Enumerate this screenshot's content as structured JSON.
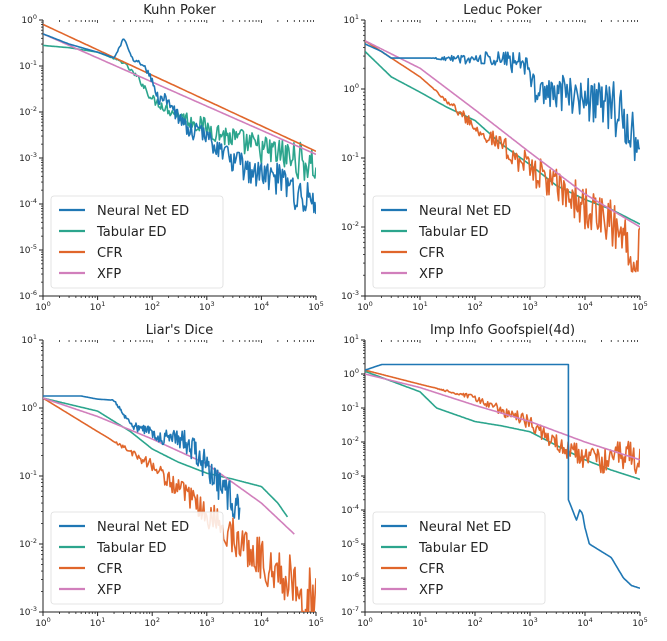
{
  "colors": {
    "neural": "#1f77b4",
    "tabular": "#2ca58d",
    "cfr": "#e0662b",
    "xfp": "#d17fbc"
  },
  "legend_items": [
    {
      "key": "neural",
      "label": "Neural Net ED"
    },
    {
      "key": "tabular",
      "label": "Tabular ED"
    },
    {
      "key": "cfr",
      "label": "CFR"
    },
    {
      "key": "xfp",
      "label": "XFP"
    }
  ],
  "chart_data": [
    {
      "type": "line",
      "title": "Kuhn Poker",
      "xscale": "log",
      "yscale": "log",
      "xlim": [
        1,
        100000
      ],
      "ylim": [
        1e-06,
        1
      ],
      "xlabel": "",
      "ylabel": "",
      "legend": "lower-left",
      "grid": false,
      "series": [
        {
          "key": "neural",
          "name": "Neural Net ED",
          "noisy": true,
          "x": [
            1,
            3,
            10,
            20,
            30,
            45,
            70,
            100,
            130,
            200,
            300,
            500,
            800,
            1500,
            3000,
            6000,
            10000,
            20000,
            50000,
            100000
          ],
          "y": [
            0.5,
            0.3,
            0.2,
            0.15,
            0.4,
            0.15,
            0.1,
            0.05,
            0.02,
            0.02,
            0.008,
            0.004,
            0.004,
            0.002,
            0.001,
            0.0006,
            0.0005,
            0.0004,
            0.0002,
            0.0001
          ]
        },
        {
          "key": "tabular",
          "name": "Tabular ED",
          "noisy": true,
          "x": [
            1,
            3,
            10,
            30,
            60,
            100,
            200,
            500,
            1000,
            3000,
            10000,
            30000,
            100000
          ],
          "y": [
            0.28,
            0.25,
            0.2,
            0.12,
            0.05,
            0.02,
            0.012,
            0.007,
            0.005,
            0.003,
            0.0018,
            0.0013,
            0.0008
          ]
        },
        {
          "key": "cfr",
          "name": "CFR",
          "x": [
            1,
            100000
          ],
          "y": [
            0.8,
            0.0014
          ]
        },
        {
          "key": "xfp",
          "name": "XFP",
          "x": [
            1,
            100000
          ],
          "y": [
            0.5,
            0.0012
          ]
        }
      ]
    },
    {
      "type": "line",
      "title": "Leduc Poker",
      "xscale": "log",
      "yscale": "log",
      "xlim": [
        1,
        100000
      ],
      "ylim": [
        0.001,
        10
      ],
      "xlabel": "",
      "ylabel": "",
      "legend": "lower-left",
      "grid": false,
      "series": [
        {
          "key": "neural",
          "name": "Neural Net ED",
          "noisy": true,
          "x": [
            1,
            2,
            3,
            10,
            100,
            800,
            1000,
            1300,
            3000,
            10000,
            30000,
            50000,
            70000,
            100000
          ],
          "y": [
            4.5,
            3.5,
            2.8,
            2.8,
            2.8,
            2.8,
            1.2,
            1.1,
            1.0,
            0.9,
            0.7,
            0.4,
            0.3,
            0.2
          ]
        },
        {
          "key": "tabular",
          "name": "Tabular ED",
          "x": [
            1,
            3,
            10,
            30,
            100,
            300,
            1000,
            3000,
            10000,
            30000,
            100000
          ],
          "y": [
            3.5,
            1.5,
            0.9,
            0.55,
            0.35,
            0.16,
            0.08,
            0.04,
            0.025,
            0.018,
            0.011
          ]
        },
        {
          "key": "cfr",
          "name": "CFR",
          "noisy": true,
          "x": [
            1,
            10,
            100,
            1000,
            10000,
            100000
          ],
          "y": [
            5.0,
            1.5,
            0.3,
            0.08,
            0.022,
            0.006
          ]
        },
        {
          "key": "xfp",
          "name": "XFP",
          "x": [
            1,
            10,
            100,
            1000,
            10000,
            100000
          ],
          "y": [
            5.0,
            2.0,
            0.5,
            0.12,
            0.03,
            0.01
          ]
        }
      ]
    },
    {
      "type": "line",
      "title": "Liar's Dice",
      "xscale": "log",
      "yscale": "log",
      "xlim": [
        1,
        100000
      ],
      "ylim": [
        0.001,
        10
      ],
      "xlabel": "",
      "ylabel": "",
      "legend": "lower-left",
      "grid": false,
      "series": [
        {
          "key": "neural",
          "name": "Neural Net ED",
          "noisy": true,
          "x": [
            1,
            5,
            10,
            20,
            40,
            60,
            80,
            100,
            150,
            250,
            400,
            600,
            1000,
            2000,
            3000,
            4000
          ],
          "y": [
            1.5,
            1.5,
            1.35,
            1.3,
            0.6,
            0.5,
            0.5,
            0.45,
            0.4,
            0.38,
            0.35,
            0.25,
            0.15,
            0.07,
            0.05,
            0.04
          ]
        },
        {
          "key": "tabular",
          "name": "Tabular ED",
          "x": [
            1,
            10,
            40,
            100,
            300,
            1000,
            3000,
            10000,
            20000,
            30000
          ],
          "y": [
            1.4,
            0.9,
            0.45,
            0.25,
            0.16,
            0.11,
            0.09,
            0.07,
            0.04,
            0.025
          ]
        },
        {
          "key": "cfr",
          "name": "CFR",
          "noisy": true,
          "x": [
            1,
            10,
            100,
            1000,
            10000,
            100000
          ],
          "y": [
            1.4,
            0.45,
            0.15,
            0.03,
            0.007,
            0.0017
          ]
        },
        {
          "key": "xfp",
          "name": "XFP",
          "x": [
            1,
            10,
            100,
            1000,
            10000,
            40000
          ],
          "y": [
            1.4,
            0.75,
            0.35,
            0.15,
            0.04,
            0.014
          ]
        }
      ]
    },
    {
      "type": "line",
      "title": "Imp Info Goofspiel(4d)",
      "xscale": "log",
      "yscale": "log",
      "xlim": [
        1,
        100000
      ],
      "ylim": [
        1e-07,
        10
      ],
      "xlabel": "",
      "ylabel": "",
      "legend": "lower-left",
      "grid": false,
      "series": [
        {
          "key": "neural",
          "name": "Neural Net ED",
          "x": [
            1,
            2,
            5000,
            5000,
            7000,
            8000,
            9000,
            10000,
            12000,
            15000,
            20000,
            30000,
            50000,
            70000,
            100000
          ],
          "y": [
            1.3,
            1.9,
            1.9,
            0.0002,
            5e-05,
            0.0001,
            8e-05,
            3e-05,
            1e-05,
            8e-06,
            6e-06,
            4e-06,
            1e-06,
            6e-07,
            5e-07
          ]
        },
        {
          "key": "tabular",
          "name": "Tabular ED",
          "x": [
            1,
            10,
            20,
            100,
            300,
            1000,
            3000,
            10000,
            30000,
            100000
          ],
          "y": [
            1.2,
            0.3,
            0.1,
            0.04,
            0.03,
            0.02,
            0.008,
            0.003,
            0.0015,
            0.0008
          ]
        },
        {
          "key": "cfr",
          "name": "CFR",
          "noisy": true,
          "x": [
            1,
            10,
            100,
            1000,
            3000,
            10000,
            20000,
            40000,
            70000,
            100000
          ],
          "y": [
            1.3,
            0.5,
            0.2,
            0.04,
            0.01,
            0.004,
            0.003,
            0.005,
            0.005,
            0.003
          ]
        },
        {
          "key": "xfp",
          "name": "XFP",
          "x": [
            1,
            10,
            100,
            1000,
            10000,
            100000
          ],
          "y": [
            1.0,
            0.4,
            0.12,
            0.04,
            0.01,
            0.003
          ]
        }
      ]
    }
  ]
}
